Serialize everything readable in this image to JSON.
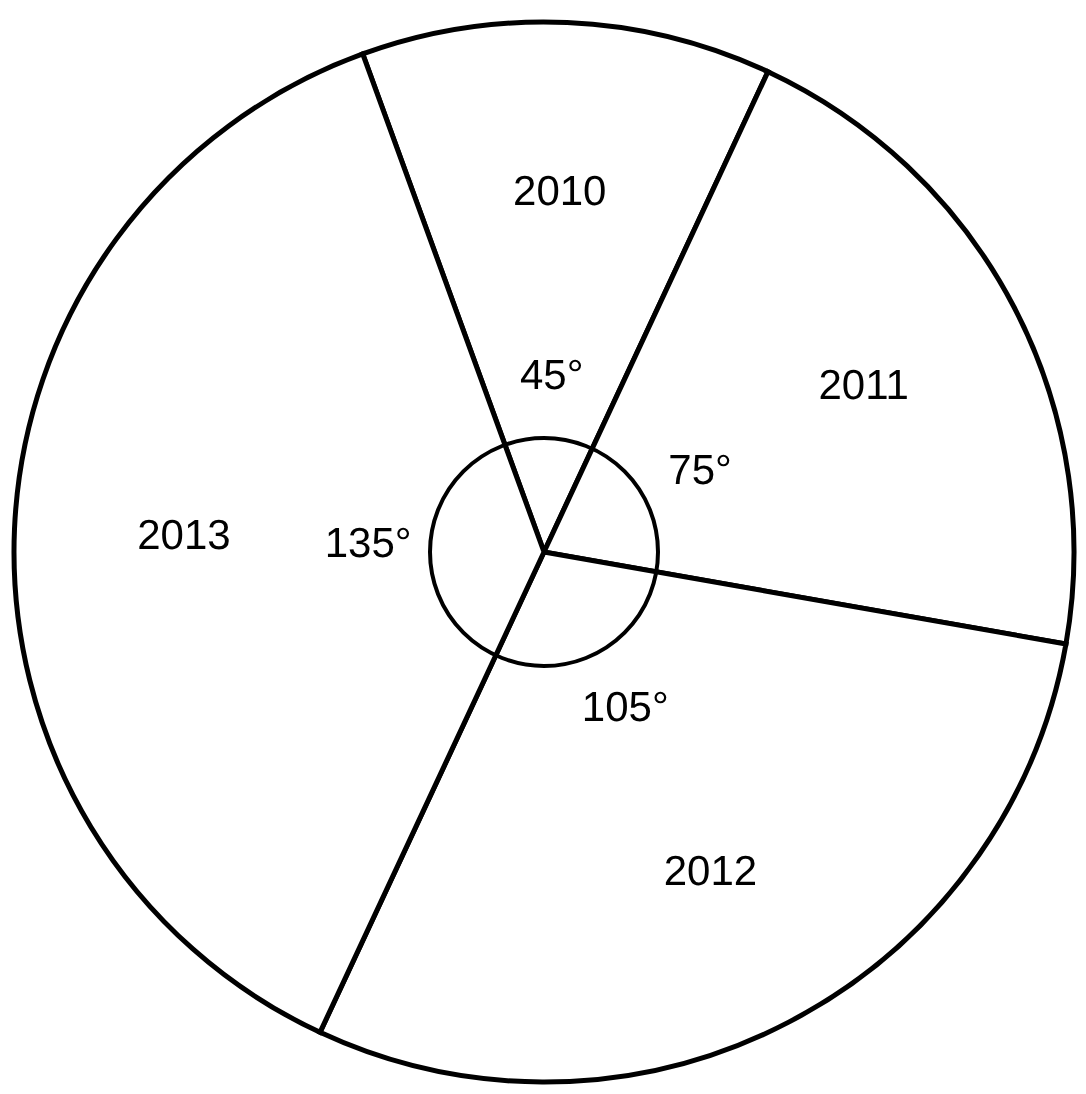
{
  "chart_data": {
    "type": "pie",
    "categories": [
      "2010",
      "2011",
      "2012",
      "2013"
    ],
    "values": [
      45,
      75,
      105,
      135
    ],
    "colors": [
      "#ffffff",
      "#ffffff",
      "#ffffff",
      "#ffffff"
    ],
    "value_labels": [
      "45°",
      "75°",
      "105°",
      "135°"
    ]
  }
}
